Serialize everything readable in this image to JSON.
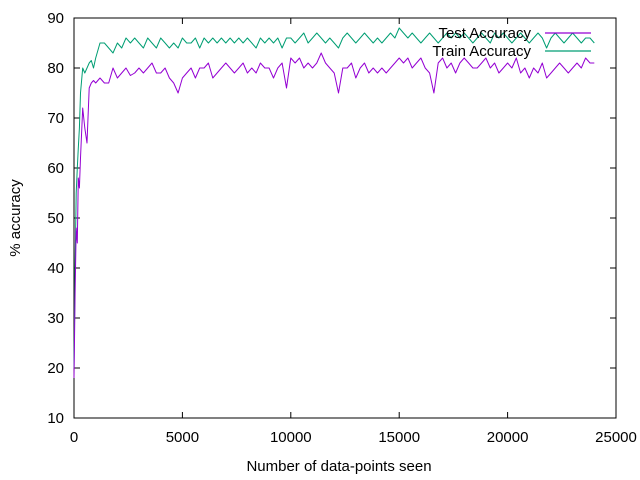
{
  "chart_data": {
    "type": "line",
    "xlabel": "Number of data-points seen",
    "ylabel": "% accuracy",
    "xlim": [
      0,
      25000
    ],
    "ylim": [
      10,
      90
    ],
    "xticks": [
      0,
      5000,
      10000,
      15000,
      20000,
      25000
    ],
    "yticks": [
      10,
      20,
      30,
      40,
      50,
      60,
      70,
      80,
      90
    ],
    "grid": false,
    "legend_position": "top-right",
    "series": [
      {
        "name": "Test Accuracy",
        "color": "#9400d3",
        "x": [
          0,
          50,
          100,
          150,
          200,
          250,
          300,
          400,
          500,
          600,
          700,
          800,
          900,
          1000,
          1200,
          1400,
          1600,
          1800,
          2000,
          2200,
          2400,
          2600,
          2800,
          3000,
          3200,
          3400,
          3600,
          3800,
          4000,
          4200,
          4400,
          4600,
          4800,
          5000,
          5200,
          5400,
          5600,
          5800,
          6000,
          6200,
          6400,
          6600,
          6800,
          7000,
          7200,
          7400,
          7600,
          7800,
          8000,
          8200,
          8400,
          8600,
          8800,
          9000,
          9200,
          9400,
          9600,
          9800,
          10000,
          10200,
          10400,
          10600,
          10800,
          11000,
          11200,
          11400,
          11600,
          11800,
          12000,
          12200,
          12400,
          12600,
          12800,
          13000,
          13200,
          13400,
          13600,
          13800,
          14000,
          14200,
          14400,
          14600,
          14800,
          15000,
          15200,
          15400,
          15600,
          15800,
          16000,
          16200,
          16400,
          16600,
          16800,
          17000,
          17200,
          17400,
          17600,
          17800,
          18000,
          18200,
          18400,
          18600,
          18800,
          19000,
          19200,
          19400,
          19600,
          19800,
          20000,
          20200,
          20400,
          20600,
          20800,
          21000,
          21200,
          21400,
          21600,
          21800,
          22000,
          22200,
          22400,
          22600,
          22800,
          23000,
          23200,
          23400,
          23600,
          23800,
          24000
        ],
        "y": [
          18,
          35,
          48,
          45,
          58,
          56,
          62,
          72,
          68,
          65,
          76,
          77,
          77.5,
          77,
          78,
          77,
          77,
          80,
          78,
          79,
          80,
          78.5,
          79,
          80,
          79,
          80,
          81,
          79,
          79,
          80,
          78,
          77,
          75,
          78,
          79,
          80,
          78,
          80,
          80,
          81,
          78,
          79,
          80,
          81,
          80,
          79,
          80,
          81,
          79,
          80,
          79,
          81,
          80,
          80,
          78,
          80,
          81,
          76,
          82,
          81,
          82,
          80,
          81,
          80,
          81,
          83,
          81,
          80,
          79,
          75,
          80,
          80,
          81,
          78,
          80,
          81,
          79,
          80,
          79,
          80,
          79,
          80,
          81,
          82,
          81,
          82,
          80,
          81,
          82,
          80,
          79,
          75,
          81,
          82,
          80,
          81,
          79,
          81,
          82,
          81,
          80,
          80,
          81,
          82,
          80,
          81,
          79,
          80,
          81,
          80,
          82,
          79,
          80,
          78,
          80,
          79,
          81,
          78,
          79,
          80,
          81,
          80,
          79,
          80,
          81,
          80,
          82,
          81,
          81
        ],
        "line_y": 33
      },
      {
        "name": "Train Accuracy",
        "color": "#009e73",
        "x": [
          0,
          50,
          100,
          150,
          200,
          250,
          300,
          400,
          500,
          600,
          700,
          800,
          900,
          1000,
          1200,
          1400,
          1600,
          1800,
          2000,
          2200,
          2400,
          2600,
          2800,
          3000,
          3200,
          3400,
          3600,
          3800,
          4000,
          4200,
          4400,
          4600,
          4800,
          5000,
          5200,
          5400,
          5600,
          5800,
          6000,
          6200,
          6400,
          6600,
          6800,
          7000,
          7200,
          7400,
          7600,
          7800,
          8000,
          8200,
          8400,
          8600,
          8800,
          9000,
          9200,
          9400,
          9600,
          9800,
          10000,
          10200,
          10400,
          10600,
          10800,
          11000,
          11200,
          11400,
          11600,
          11800,
          12000,
          12200,
          12400,
          12600,
          12800,
          13000,
          13200,
          13400,
          13600,
          13800,
          14000,
          14200,
          14400,
          14600,
          14800,
          15000,
          15200,
          15400,
          15600,
          15800,
          16000,
          16200,
          16400,
          16600,
          16800,
          17000,
          17200,
          17400,
          17600,
          17800,
          18000,
          18200,
          18400,
          18600,
          18800,
          19000,
          19200,
          19400,
          19600,
          19800,
          20000,
          20200,
          20400,
          20600,
          20800,
          21000,
          21200,
          21400,
          21600,
          21800,
          22000,
          22200,
          22400,
          22600,
          22800,
          23000,
          23200,
          23400,
          23600,
          23800,
          24000
        ],
        "y": [
          20,
          40,
          55,
          60,
          64,
          68,
          75,
          80,
          79,
          80,
          81,
          81.5,
          80,
          82,
          85,
          85,
          84,
          83,
          85,
          84,
          86,
          85,
          86,
          85,
          84,
          86,
          85,
          84,
          86,
          85,
          84,
          85,
          84,
          86,
          85,
          85,
          86,
          84,
          86,
          85,
          86,
          85,
          86,
          85,
          86,
          85,
          86,
          85,
          86,
          85,
          84,
          86,
          85,
          86,
          85,
          86,
          84,
          86,
          86,
          85,
          86,
          87,
          85,
          86,
          87,
          86,
          85,
          86,
          85,
          84,
          86,
          87,
          86,
          85,
          86,
          87,
          86,
          85,
          86,
          85,
          86,
          87,
          86,
          88,
          87,
          86,
          87,
          86,
          85,
          86,
          87,
          86,
          85,
          86,
          87,
          86,
          87,
          86,
          87,
          86,
          85,
          86,
          87,
          86,
          85,
          87,
          86,
          87,
          86,
          85,
          86,
          87,
          86,
          85,
          86,
          87,
          86,
          84,
          86,
          87,
          86,
          85,
          86,
          87,
          86,
          85,
          86,
          86,
          85
        ],
        "line_y": 51
      }
    ]
  }
}
